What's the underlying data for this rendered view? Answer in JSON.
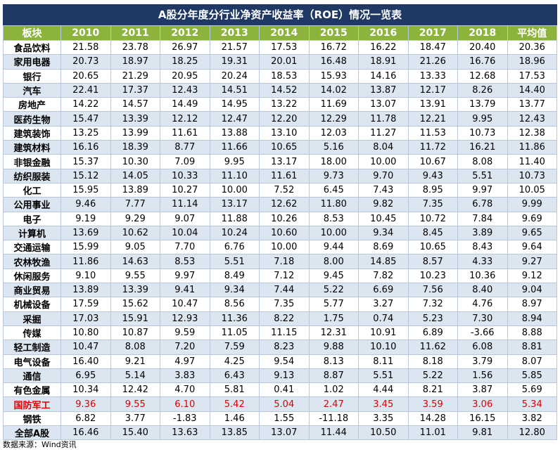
{
  "title": "A股分年度分行业净资产收益率（ROE）情况一览表",
  "table": {
    "header": [
      "板块",
      "2010",
      "2011",
      "2012",
      "2013",
      "2014",
      "2015",
      "2016",
      "2017",
      "2018",
      "平均值"
    ],
    "rows": [
      [
        "食品饮料",
        "21.58",
        "23.78",
        "26.97",
        "21.57",
        "17.53",
        "16.72",
        "16.22",
        "18.47",
        "20.40",
        "20.36"
      ],
      [
        "家用电器",
        "20.73",
        "18.97",
        "18.25",
        "19.31",
        "20.01",
        "16.48",
        "18.91",
        "21.26",
        "16.76",
        "18.96"
      ],
      [
        "银行",
        "20.65",
        "21.29",
        "20.95",
        "20.24",
        "18.53",
        "15.93",
        "14.16",
        "13.33",
        "12.68",
        "17.53"
      ],
      [
        "汽车",
        "22.41",
        "17.37",
        "12.43",
        "14.51",
        "14.52",
        "14.02",
        "13.87",
        "12.17",
        "8.26",
        "14.40"
      ],
      [
        "房地产",
        "14.22",
        "14.57",
        "14.49",
        "14.95",
        "13.22",
        "11.69",
        "13.07",
        "13.91",
        "13.79",
        "13.77"
      ],
      [
        "医药生物",
        "15.47",
        "13.39",
        "12.12",
        "12.47",
        "12.20",
        "12.29",
        "11.78",
        "12.21",
        "9.95",
        "12.43"
      ],
      [
        "建筑装饰",
        "13.25",
        "13.99",
        "11.61",
        "13.88",
        "13.10",
        "12.03",
        "11.27",
        "11.53",
        "10.73",
        "12.38"
      ],
      [
        "建筑材料",
        "16.16",
        "18.39",
        "8.77",
        "11.66",
        "10.65",
        "5.16",
        "8.04",
        "11.72",
        "16.21",
        "11.86"
      ],
      [
        "非银金融",
        "15.37",
        "10.30",
        "7.09",
        "9.95",
        "13.17",
        "18.00",
        "10.00",
        "10.67",
        "8.08",
        "11.40"
      ],
      [
        "纺织服装",
        "15.12",
        "14.05",
        "10.33",
        "11.10",
        "11.61",
        "9.73",
        "9.70",
        "9.43",
        "5.51",
        "10.73"
      ],
      [
        "化工",
        "15.95",
        "13.89",
        "10.27",
        "10.00",
        "7.52",
        "6.45",
        "7.43",
        "8.95",
        "9.97",
        "10.05"
      ],
      [
        "公用事业",
        "9.46",
        "7.77",
        "11.14",
        "13.17",
        "12.62",
        "11.80",
        "9.82",
        "7.35",
        "6.78",
        "9.99"
      ],
      [
        "电子",
        "9.19",
        "9.29",
        "9.07",
        "11.88",
        "10.26",
        "8.53",
        "10.45",
        "10.72",
        "7.84",
        "9.69"
      ],
      [
        "计算机",
        "13.69",
        "10.62",
        "10.04",
        "10.24",
        "10.60",
        "10.00",
        "9.34",
        "8.45",
        "3.89",
        "9.65"
      ],
      [
        "交通运输",
        "15.99",
        "9.05",
        "7.70",
        "6.76",
        "10.00",
        "9.44",
        "8.69",
        "10.65",
        "8.43",
        "9.64"
      ],
      [
        "农林牧渔",
        "11.86",
        "14.63",
        "8.53",
        "5.51",
        "7.18",
        "8.00",
        "14.85",
        "8.57",
        "4.33",
        "9.27"
      ],
      [
        "休闲服务",
        "9.10",
        "9.55",
        "9.97",
        "8.49",
        "7.12",
        "9.45",
        "7.82",
        "10.23",
        "10.36",
        "9.12"
      ],
      [
        "商业贸易",
        "13.89",
        "13.39",
        "9.41",
        "9.34",
        "7.44",
        "5.22",
        "6.69",
        "7.56",
        "8.40",
        "9.04"
      ],
      [
        "机械设备",
        "17.59",
        "15.62",
        "10.47",
        "8.56",
        "7.35",
        "5.77",
        "3.27",
        "7.32",
        "4.76",
        "8.97"
      ],
      [
        "采掘",
        "17.03",
        "15.91",
        "12.93",
        "11.36",
        "8.22",
        "1.75",
        "0.74",
        "5.23",
        "7.30",
        "8.94"
      ],
      [
        "传媒",
        "10.80",
        "10.87",
        "9.59",
        "11.05",
        "11.15",
        "12.31",
        "10.91",
        "6.89",
        "-3.66",
        "8.88"
      ],
      [
        "轻工制造",
        "10.47",
        "8.08",
        "7.20",
        "7.59",
        "8.23",
        "9.88",
        "10.10",
        "11.62",
        "6.08",
        "8.81"
      ],
      [
        "电气设备",
        "16.40",
        "9.21",
        "4.97",
        "4.25",
        "9.54",
        "8.13",
        "8.11",
        "8.18",
        "3.79",
        "8.07"
      ],
      [
        "通信",
        "6.95",
        "5.14",
        "3.83",
        "6.43",
        "9.13",
        "8.87",
        "5.51",
        "5.22",
        "1.56",
        "5.85"
      ],
      [
        "有色金属",
        "10.34",
        "12.42",
        "4.70",
        "5.81",
        "0.41",
        "1.02",
        "4.44",
        "8.21",
        "3.87",
        "5.69"
      ],
      [
        "国防军工",
        "9.36",
        "9.55",
        "6.10",
        "5.42",
        "5.04",
        "2.47",
        "3.45",
        "3.59",
        "3.06",
        "5.34"
      ],
      [
        "钢铁",
        "6.82",
        "3.77",
        "-1.83",
        "1.46",
        "1.55",
        "-11.18",
        "3.35",
        "14.28",
        "16.15",
        "3.82"
      ],
      [
        "全部A股",
        "16.46",
        "15.40",
        "13.63",
        "13.85",
        "13.07",
        "11.44",
        "10.50",
        "11.01",
        "9.81",
        "12.80"
      ]
    ]
  },
  "source": "数据来源：Wind资讯"
}
